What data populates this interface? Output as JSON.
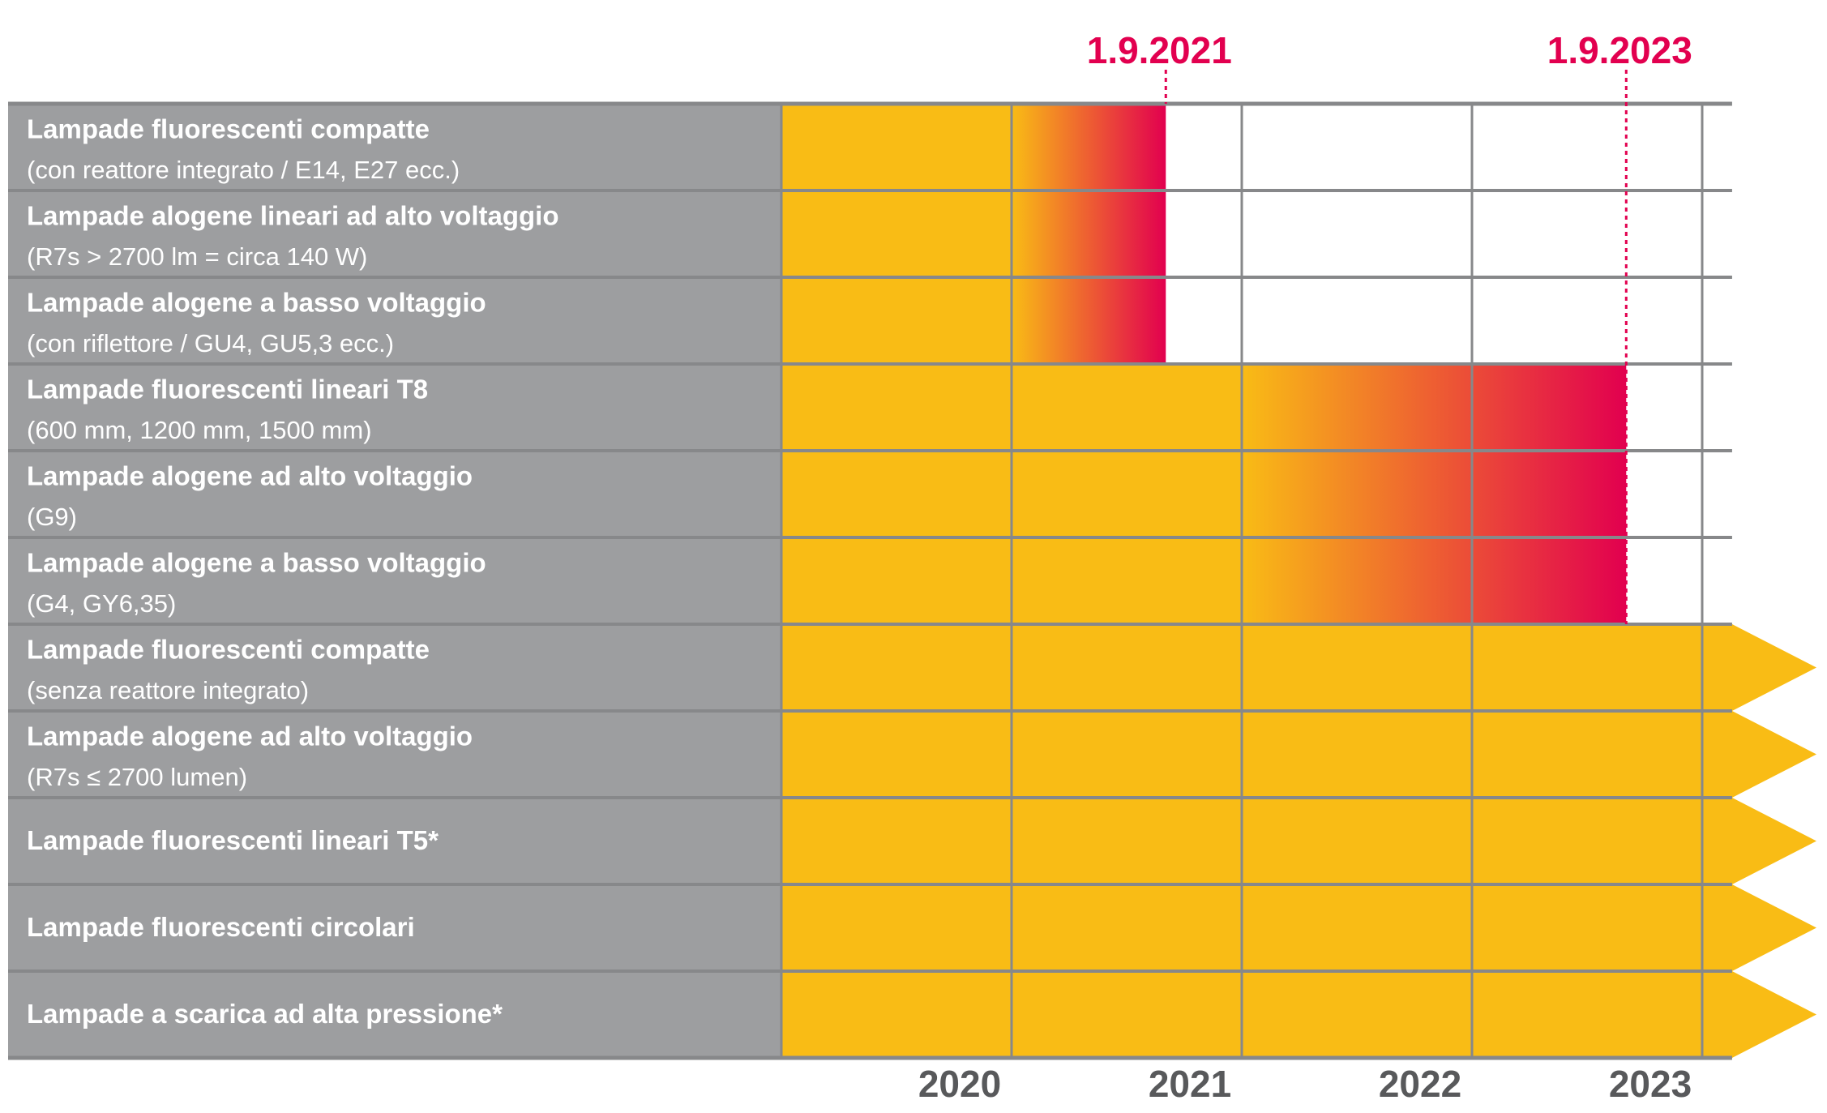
{
  "chart_data": {
    "type": "bar",
    "subtype": "timeline",
    "x_ticks": [
      "2020",
      "2021",
      "2022",
      "2023"
    ],
    "xlim": [
      2020.0,
      2024.13
    ],
    "grid": true,
    "milestones": [
      {
        "label": "1.9.2021",
        "value": 2021.67
      },
      {
        "label": "1.9.2023",
        "value": 2023.67
      }
    ],
    "rows": [
      {
        "title": "Lampade fluorescenti compatte",
        "subtitle": "(con reattore integrato / E14, E27 ecc.)",
        "end": "1.9.2021",
        "continues": false
      },
      {
        "title": "Lampade alogene lineari ad alto voltaggio",
        "subtitle": "(R7s > 2700 lm = circa 140 W)",
        "end": "1.9.2021",
        "continues": false
      },
      {
        "title": "Lampade alogene a basso voltaggio",
        "subtitle": "(con riflettore / GU4, GU5,3 ecc.)",
        "end": "1.9.2021",
        "continues": false
      },
      {
        "title": "Lampade fluorescenti lineari T8",
        "subtitle": "(600 mm, 1200 mm, 1500 mm)",
        "end": "1.9.2023",
        "continues": false
      },
      {
        "title": "Lampade alogene ad alto voltaggio",
        "subtitle": "(G9)",
        "end": "1.9.2023",
        "continues": false
      },
      {
        "title": "Lampade alogene a basso voltaggio",
        "subtitle": "(G4, GY6,35)",
        "end": "1.9.2023",
        "continues": false
      },
      {
        "title": "Lampade fluorescenti compatte",
        "subtitle": "(senza reattore integrato)",
        "end": null,
        "continues": true
      },
      {
        "title": "Lampade alogene ad alto voltaggio",
        "subtitle": "(R7s ≤ 2700 lumen)",
        "end": null,
        "continues": true
      },
      {
        "title": "Lampade fluorescenti lineari T5*",
        "subtitle": "",
        "end": null,
        "continues": true
      },
      {
        "title": "Lampade fluorescenti circolari",
        "subtitle": "",
        "end": null,
        "continues": true
      },
      {
        "title": "Lampade a scarica ad alta pressione*",
        "subtitle": "",
        "end": null,
        "continues": true
      }
    ],
    "colors": {
      "label_bg": "#9d9ea0",
      "grid": "#87888a",
      "bar": "#f9bc15",
      "phase_out": "#e2004f",
      "year_text": "#58595b"
    }
  }
}
